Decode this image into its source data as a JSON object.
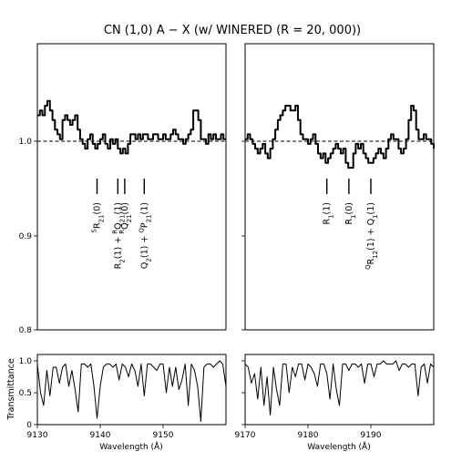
{
  "chart_data": {
    "type": "line",
    "title": "CN (1,0) A − X (w/ WINERED (R = 20, 000))",
    "shared": {
      "xlabel": "Wavelength (Å)",
      "top_ylim": [
        0.8,
        1.1
      ],
      "top_yticks": [
        "0.8",
        "0.9",
        "1.0"
      ],
      "reference_level": 1.0,
      "bottom_ylabel": "Transmittance",
      "bottom_ylim": [
        0,
        1.1
      ],
      "bottom_yticks": [
        "0",
        "0.5",
        "1.0"
      ]
    },
    "panels": [
      {
        "xlim": [
          9130,
          9160
        ],
        "xticks": [
          "9130",
          "9140",
          "9150"
        ],
        "line_marks": [
          {
            "x": 9139.5,
            "label": "^{S}R_{21}(0)"
          },
          {
            "x": 9142.8,
            "label": "R_2(1) + ^{R}Q_{21}(1)"
          },
          {
            "x": 9143.9,
            "label": "^{R}Q_{21}(0)"
          },
          {
            "x": 9147.0,
            "label": "Q_2(1) + ^{Q}P_{21}(1)"
          }
        ],
        "spectrum": {
          "x": [
            9130,
            9130.4,
            9130.8,
            9131.2,
            9131.6,
            9132.0,
            9132.4,
            9132.8,
            9133.2,
            9133.6,
            9134.0,
            9134.4,
            9134.8,
            9135.2,
            9135.6,
            9136.0,
            9136.4,
            9136.8,
            9137.2,
            9137.6,
            9138.0,
            9138.4,
            9138.8,
            9139.2,
            9139.6,
            9140.0,
            9140.4,
            9140.8,
            9141.2,
            9141.6,
            9142.0,
            9142.4,
            9142.8,
            9143.2,
            9143.6,
            9144.0,
            9144.4,
            9144.8,
            9145.2,
            9145.6,
            9146.0,
            9146.4,
            9146.8,
            9147.2,
            9147.6,
            9148.0,
            9148.4,
            9148.8,
            9149.2,
            9149.6,
            9150.0,
            9150.4,
            9150.8,
            9151.2,
            9151.6,
            9152.0,
            9152.4,
            9152.8,
            9153.2,
            9153.6,
            9154.0,
            9154.4,
            9154.8,
            9155.2,
            9155.6,
            9156.0,
            9156.4,
            9156.8,
            9157.2,
            9157.6,
            9158.0,
            9158.4,
            9158.8,
            9159.2,
            9159.6,
            9160.0
          ],
          "y": [
            1.025,
            1.03,
            1.025,
            1.035,
            1.04,
            1.03,
            1.02,
            1.01,
            1.005,
            1.0,
            1.02,
            1.025,
            1.02,
            1.015,
            1.02,
            1.025,
            1.01,
            1.0,
            0.995,
            0.99,
            1.0,
            1.005,
            0.995,
            0.99,
            0.995,
            1.0,
            1.005,
            0.995,
            0.99,
            1.0,
            0.995,
            1.0,
            0.99,
            0.985,
            0.99,
            0.985,
            0.995,
            1.005,
            1.005,
            1.0,
            1.005,
            1.0,
            1.005,
            1.005,
            1.0,
            1.0,
            1.005,
            1.005,
            1.0,
            1.0,
            1.005,
            1.0,
            1.0,
            1.005,
            1.01,
            1.005,
            1.0,
            1.0,
            0.995,
            1.0,
            1.005,
            1.01,
            1.03,
            1.03,
            1.02,
            1.0,
            1.0,
            0.995,
            1.005,
            1.0,
            1.005,
            1.0,
            1.0,
            1.005,
            1.0,
            1.0
          ]
        },
        "transmittance": {
          "x": [
            9130,
            9130.5,
            9131.0,
            9131.5,
            9132.0,
            9132.5,
            9133.0,
            9133.5,
            9134.0,
            9134.5,
            9135.0,
            9135.5,
            9136.0,
            9136.5,
            9137.0,
            9137.5,
            9138.0,
            9138.5,
            9139.0,
            9139.5,
            9140.0,
            9140.5,
            9141.0,
            9141.5,
            9142.0,
            9142.5,
            9143.0,
            9143.5,
            9144.0,
            9144.5,
            9145.0,
            9145.5,
            9146.0,
            9146.5,
            9147.0,
            9147.5,
            9148.0,
            9148.5,
            9149.0,
            9149.5,
            9150.0,
            9150.5,
            9151.0,
            9151.5,
            9152.0,
            9152.5,
            9153.0,
            9153.5,
            9154.0,
            9154.5,
            9155.0,
            9155.5,
            9156.0,
            9156.5,
            9157.0,
            9157.5,
            9158.0,
            9158.5,
            9159.0,
            9159.5,
            9160.0
          ],
          "y": [
            0.95,
            0.5,
            0.3,
            0.85,
            0.45,
            0.9,
            0.9,
            0.65,
            0.9,
            0.95,
            0.6,
            0.85,
            0.55,
            0.2,
            0.95,
            0.95,
            0.9,
            0.95,
            0.6,
            0.1,
            0.6,
            0.9,
            0.95,
            0.95,
            0.9,
            0.95,
            0.7,
            0.95,
            0.9,
            0.75,
            0.95,
            0.85,
            0.6,
            0.95,
            0.45,
            0.95,
            0.95,
            0.9,
            0.85,
            0.95,
            0.95,
            0.5,
            0.9,
            0.6,
            0.9,
            0.55,
            0.7,
            0.95,
            0.3,
            0.95,
            0.85,
            0.6,
            0.05,
            0.9,
            0.95,
            0.95,
            0.9,
            0.95,
            1.0,
            0.95,
            0.6
          ]
        }
      },
      {
        "xlim": [
          9170,
          9200
        ],
        "xticks": [
          "9170",
          "9180",
          "9190"
        ],
        "line_marks": [
          {
            "x": 9183.0,
            "label": "R_1(1)"
          },
          {
            "x": 9186.5,
            "label": "R_1(0)"
          },
          {
            "x": 9190.0,
            "label": "^{Q}R_{12}(1) + Q_1(1)"
          }
        ],
        "spectrum": {
          "x": [
            9170,
            9170.4,
            9170.8,
            9171.2,
            9171.6,
            9172.0,
            9172.4,
            9172.8,
            9173.2,
            9173.6,
            9174.0,
            9174.4,
            9174.8,
            9175.2,
            9175.6,
            9176.0,
            9176.4,
            9176.8,
            9177.2,
            9177.6,
            9178.0,
            9178.4,
            9178.8,
            9179.2,
            9179.6,
            9180.0,
            9180.4,
            9180.8,
            9181.2,
            9181.6,
            9182.0,
            9182.4,
            9182.8,
            9183.2,
            9183.6,
            9184.0,
            9184.4,
            9184.8,
            9185.2,
            9185.6,
            9186.0,
            9186.4,
            9186.8,
            9187.2,
            9187.6,
            9188.0,
            9188.4,
            9188.8,
            9189.2,
            9189.6,
            9190.0,
            9190.4,
            9190.8,
            9191.2,
            9191.6,
            9192.0,
            9192.4,
            9192.8,
            9193.2,
            9193.6,
            9194.0,
            9194.4,
            9194.8,
            9195.2,
            9195.6,
            9196.0,
            9196.4,
            9196.8,
            9197.2,
            9197.6,
            9198.0,
            9198.4,
            9198.8,
            9199.2,
            9199.6,
            9200.0
          ],
          "y": [
            1.0,
            1.005,
            1.0,
            0.995,
            0.99,
            0.985,
            0.99,
            0.995,
            0.985,
            0.98,
            0.99,
            1.0,
            1.01,
            1.02,
            1.025,
            1.03,
            1.035,
            1.035,
            1.03,
            1.03,
            1.035,
            1.02,
            1.005,
            1.0,
            1.0,
            0.995,
            1.0,
            1.005,
            0.995,
            0.985,
            0.98,
            0.985,
            0.975,
            0.98,
            0.985,
            0.99,
            0.995,
            0.99,
            0.985,
            0.99,
            0.975,
            0.97,
            0.97,
            0.985,
            0.995,
            0.99,
            0.995,
            0.985,
            0.98,
            0.975,
            0.975,
            0.98,
            0.985,
            0.99,
            0.985,
            0.98,
            0.99,
            1.0,
            1.005,
            1.0,
            1.0,
            0.99,
            0.985,
            0.99,
            1.0,
            1.02,
            1.035,
            1.03,
            1.01,
            1.0,
            1.0,
            1.005,
            1.0,
            1.0,
            0.995,
            0.99
          ]
        },
        "transmittance": {
          "x": [
            9170,
            9170.5,
            9171.0,
            9171.5,
            9172.0,
            9172.5,
            9173.0,
            9173.5,
            9174.0,
            9174.5,
            9175.0,
            9175.5,
            9176.0,
            9176.5,
            9177.0,
            9177.5,
            9178.0,
            9178.5,
            9179.0,
            9179.5,
            9180.0,
            9180.5,
            9181.0,
            9181.5,
            9182.0,
            9182.5,
            9183.0,
            9183.5,
            9184.0,
            9184.5,
            9185.0,
            9185.5,
            9186.0,
            9186.5,
            9187.0,
            9187.5,
            9188.0,
            9188.5,
            9189.0,
            9189.5,
            9190.0,
            9190.5,
            9191.0,
            9191.5,
            9192.0,
            9192.5,
            9193.0,
            9193.5,
            9194.0,
            9194.5,
            9195.0,
            9195.5,
            9196.0,
            9196.5,
            9197.0,
            9197.5,
            9198.0,
            9198.5,
            9199.0,
            9199.5,
            9200.0
          ],
          "y": [
            0.95,
            0.9,
            0.65,
            0.8,
            0.4,
            0.9,
            0.3,
            0.75,
            0.15,
            0.9,
            0.55,
            0.3,
            0.95,
            0.95,
            0.5,
            0.9,
            0.75,
            0.95,
            0.95,
            0.7,
            0.95,
            0.9,
            0.8,
            0.6,
            0.95,
            0.95,
            0.8,
            0.4,
            0.95,
            0.55,
            0.3,
            0.95,
            0.95,
            0.85,
            0.95,
            0.95,
            0.9,
            0.95,
            0.65,
            0.95,
            0.95,
            0.75,
            0.95,
            0.95,
            1.0,
            0.95,
            0.95,
            0.95,
            1.0,
            0.85,
            0.95,
            0.95,
            0.9,
            0.95,
            0.95,
            0.45,
            0.9,
            0.95,
            0.65,
            0.95,
            0.9
          ]
        }
      }
    ]
  }
}
